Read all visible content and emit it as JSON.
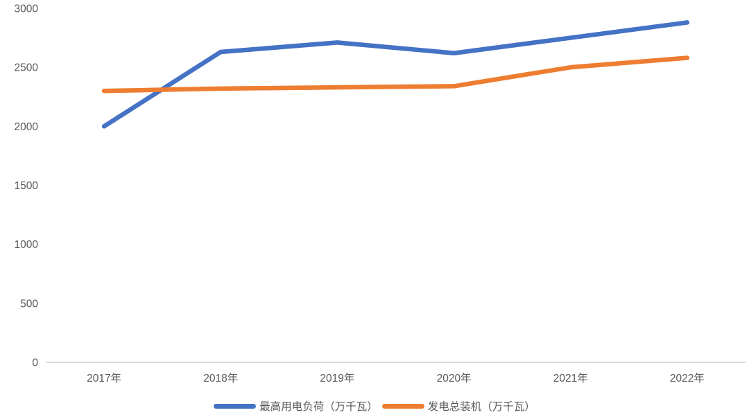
{
  "chart_data": {
    "type": "line",
    "categories": [
      "2017年",
      "2018年",
      "2019年",
      "2020年",
      "2021年",
      "2022年"
    ],
    "series": [
      {
        "name": "最高用电负荷（万千瓦）",
        "values": [
          2000,
          2630,
          2710,
          2620,
          2750,
          2880
        ],
        "color": "#4472C4"
      },
      {
        "name": "发电总装机（万千瓦）",
        "values": [
          2300,
          2320,
          2330,
          2340,
          2500,
          2580
        ],
        "color": "#ED7D31"
      }
    ],
    "title": "",
    "xlabel": "",
    "ylabel": "",
    "ylim": [
      0,
      3000
    ],
    "yticks": [
      0,
      500,
      1000,
      1500,
      2000,
      2500,
      3000
    ],
    "grid": false,
    "legend_position": "bottom",
    "axis_line_color": "#D9D9D9",
    "tick_label_color": "#595959",
    "background_color": "#FFFFFF"
  }
}
